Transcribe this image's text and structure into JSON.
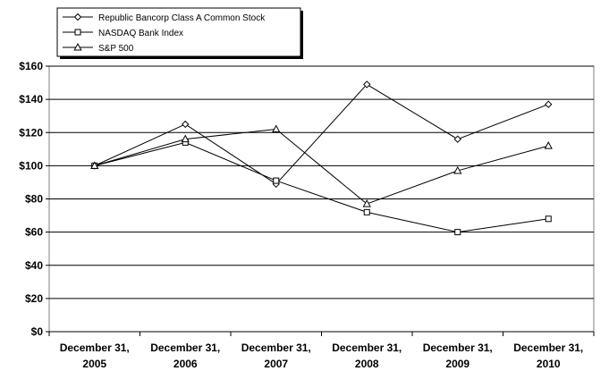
{
  "chart_data": {
    "type": "line",
    "categories": [
      [
        "December 31,",
        "2005"
      ],
      [
        "December 31,",
        "2006"
      ],
      [
        "December 31,",
        "2007"
      ],
      [
        "December 31,",
        "2008"
      ],
      [
        "December 31,",
        "2009"
      ],
      [
        "December 31,",
        "2010"
      ]
    ],
    "ylim": [
      0,
      160
    ],
    "yticks": [
      0,
      20,
      40,
      60,
      80,
      100,
      120,
      140,
      160
    ],
    "ytick_labels": [
      "$0",
      "$20",
      "$40",
      "$60",
      "$80",
      "$100",
      "$120",
      "$140",
      "$160"
    ],
    "grid": true,
    "legend_position": "top-left",
    "series": [
      {
        "name": "Republic Bancorp Class A Common Stock",
        "marker": "diamond",
        "values": [
          100,
          125,
          89,
          149,
          116,
          137
        ]
      },
      {
        "name": "NASDAQ Bank Index",
        "marker": "square",
        "values": [
          100,
          114,
          91,
          72,
          60,
          68
        ]
      },
      {
        "name": "S&P 500",
        "marker": "triangle",
        "values": [
          100,
          116,
          122,
          77,
          97,
          112
        ]
      }
    ]
  }
}
